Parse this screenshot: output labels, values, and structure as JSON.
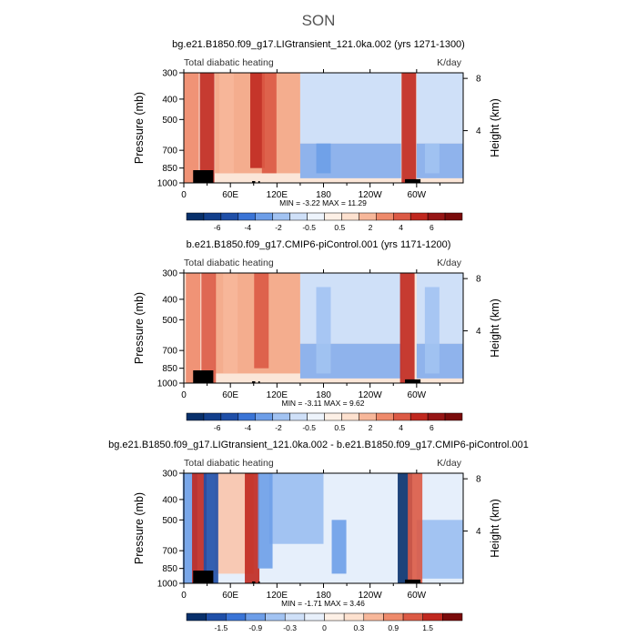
{
  "figure": {
    "season": "SON"
  },
  "chart_data": [
    {
      "type": "heatmap",
      "title": "bg.e21.B1850.f09_g17.LIGtransient_121.0ka.002 (yrs 1271-1300)",
      "left_label": "Total diabatic heating",
      "units": "K/day",
      "ylabel": "Pressure (mb)",
      "ylabel_right": "Height (km)",
      "x_ticks": [
        "0",
        "60E",
        "120E",
        "180",
        "120W",
        "60W"
      ],
      "y_ticks": [
        "300",
        "400",
        "500",
        "700",
        "850",
        "1000"
      ],
      "height_ticks": [
        "8",
        "4"
      ],
      "stats": "MIN = -3.22 MAX = 11.29",
      "min": -3.22,
      "max": 11.29,
      "colorbar": {
        "labels": [
          "-6",
          "-4",
          "-2",
          "-0.5",
          "0.5",
          "2",
          "4",
          "6"
        ],
        "levels": [
          -6,
          -5,
          -4,
          -3,
          -2,
          -1,
          -0.5,
          0,
          0.5,
          1,
          2,
          3,
          4,
          5,
          6
        ]
      },
      "features": [
        {
          "lon": 10,
          "p_top": 300,
          "p_bot": 1000,
          "value": 3
        },
        {
          "lon": 30,
          "p_top": 300,
          "p_bot": 1000,
          "value": 5
        },
        {
          "lon": 55,
          "p_top": 300,
          "p_bot": 900,
          "value": 2
        },
        {
          "lon": 95,
          "p_top": 300,
          "p_bot": 850,
          "value": 5
        },
        {
          "lon": 110,
          "p_top": 300,
          "p_bot": 900,
          "value": 4
        },
        {
          "lon": 180,
          "p_top": 650,
          "p_bot": 900,
          "value": -2
        },
        {
          "lon": 290,
          "p_top": 300,
          "p_bot": 1000,
          "value": 5
        },
        {
          "lon": 320,
          "p_top": 650,
          "p_bot": 900,
          "value": -1
        }
      ]
    },
    {
      "type": "heatmap",
      "title": "b.e21.B1850.f09_g17.CMIP6-piControl.001 (yrs 1171-1200)",
      "left_label": "Total diabatic heating",
      "units": "K/day",
      "ylabel": "Pressure (mb)",
      "ylabel_right": "Height (km)",
      "x_ticks": [
        "0",
        "60E",
        "120E",
        "180",
        "120W",
        "60W"
      ],
      "y_ticks": [
        "300",
        "400",
        "500",
        "700",
        "850",
        "1000"
      ],
      "height_ticks": [
        "8",
        "4"
      ],
      "stats": "MIN = -3.11 MAX = 9.62",
      "min": -3.11,
      "max": 9.62,
      "colorbar": {
        "labels": [
          "-6",
          "-4",
          "-2",
          "-0.5",
          "0.5",
          "2",
          "4",
          "6"
        ],
        "levels": [
          -6,
          -5,
          -4,
          -3,
          -2,
          -1,
          -0.5,
          0,
          0.5,
          1,
          2,
          3,
          4,
          5,
          6
        ]
      },
      "features": [
        {
          "lon": 12,
          "p_top": 300,
          "p_bot": 1000,
          "value": 3
        },
        {
          "lon": 32,
          "p_top": 300,
          "p_bot": 1000,
          "value": 4
        },
        {
          "lon": 60,
          "p_top": 300,
          "p_bot": 900,
          "value": 2
        },
        {
          "lon": 100,
          "p_top": 300,
          "p_bot": 850,
          "value": 4
        },
        {
          "lon": 180,
          "p_top": 350,
          "p_bot": 900,
          "value": -1
        },
        {
          "lon": 288,
          "p_top": 300,
          "p_bot": 1000,
          "value": 5
        },
        {
          "lon": 320,
          "p_top": 350,
          "p_bot": 900,
          "value": -1
        }
      ]
    },
    {
      "type": "heatmap",
      "title": "bg.e21.B1850.f09_g17.LIGtransient_121.0ka.002 - b.e21.B1850.f09_g17.CMIP6-piControl.001",
      "left_label": "Total diabatic heating",
      "units": "K/day",
      "ylabel": "Pressure (mb)",
      "ylabel_right": "Height (km)",
      "x_ticks": [
        "0",
        "60E",
        "120E",
        "180",
        "120W",
        "60W"
      ],
      "y_ticks": [
        "300",
        "400",
        "500",
        "700",
        "850",
        "1000"
      ],
      "height_ticks": [
        "8",
        "4"
      ],
      "stats": "MIN = -1.71 MAX = 3.46",
      "min": -1.71,
      "max": 3.46,
      "colorbar": {
        "labels": [
          "-1.5",
          "-0.9",
          "-0.3",
          "0",
          "0.3",
          "0.9",
          "1.5"
        ],
        "levels": [
          -1.5,
          -1.2,
          -0.9,
          -0.6,
          -0.3,
          -0.1,
          0,
          0.1,
          0.3,
          0.6,
          0.9,
          1.2,
          1.5
        ]
      },
      "features": [
        {
          "lon": 8,
          "p_top": 300,
          "p_bot": 1000,
          "value": -0.6
        },
        {
          "lon": 20,
          "p_top": 300,
          "p_bot": 1000,
          "value": 1.5
        },
        {
          "lon": 35,
          "p_top": 300,
          "p_bot": 1000,
          "value": -1.2
        },
        {
          "lon": 88,
          "p_top": 300,
          "p_bot": 1000,
          "value": 1.5
        },
        {
          "lon": 105,
          "p_top": 300,
          "p_bot": 850,
          "value": -0.6
        },
        {
          "lon": 285,
          "p_top": 300,
          "p_bot": 1000,
          "value": -1.5
        },
        {
          "lon": 298,
          "p_top": 300,
          "p_bot": 1000,
          "value": 1.2
        },
        {
          "lon": 200,
          "p_top": 500,
          "p_bot": 900,
          "value": -0.3
        }
      ]
    }
  ]
}
